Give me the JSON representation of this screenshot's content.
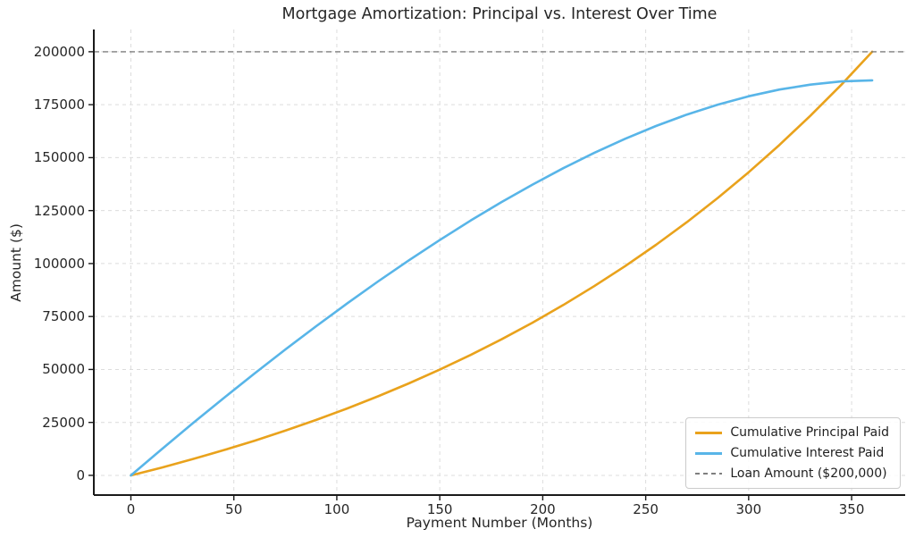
{
  "figure": {
    "background": "#ffffff",
    "text_color": "#262626",
    "spine_color": "#1a1a1a",
    "grid_color": "#dcdcdc"
  },
  "chart_data": {
    "type": "line",
    "title": "Mortgage Amortization: Principal vs. Interest Over Time",
    "xlabel": "Payment Number (Months)",
    "ylabel": "Amount ($)",
    "xticks": [
      0,
      50,
      100,
      150,
      200,
      250,
      300,
      350
    ],
    "yticks": [
      0,
      25000,
      50000,
      75000,
      100000,
      125000,
      150000,
      175000,
      200000
    ],
    "xlim": [
      -18,
      376
    ],
    "ylim": [
      -9300,
      210500
    ],
    "grid": true,
    "grid_style": "dashed",
    "legend_position": "lower-right",
    "x": [
      0,
      15,
      30,
      45,
      60,
      75,
      90,
      105,
      120,
      135,
      150,
      165,
      180,
      195,
      210,
      225,
      240,
      255,
      270,
      285,
      300,
      315,
      330,
      345,
      360
    ],
    "series": [
      {
        "name": "Cumulative Principal Paid",
        "color": "#E9A21C",
        "style": "solid",
        "values": [
          0,
          3712,
          7662,
          11867,
          16342,
          21105,
          26176,
          31572,
          37316,
          43428,
          49936,
          56861,
          64233,
          72078,
          80429,
          89315,
          98776,
          108845,
          119561,
          130969,
          143107,
          156028,
          169812,
          184435,
          200000
        ]
      },
      {
        "name": "Cumulative Interest Paid",
        "color": "#58B5E8",
        "style": "solid",
        "values": [
          0,
          12393,
          24547,
          36447,
          48076,
          59418,
          70452,
          81161,
          91521,
          101514,
          111111,
          120290,
          129023,
          137282,
          145036,
          152255,
          158898,
          164935,
          170323,
          175020,
          178986,
          182169,
          184490,
          185971,
          186512
        ]
      },
      {
        "name": "Loan Amount ($200,000)",
        "color": "#7F7F7F",
        "style": "dashed",
        "kind": "hline",
        "value": 200000
      }
    ]
  }
}
